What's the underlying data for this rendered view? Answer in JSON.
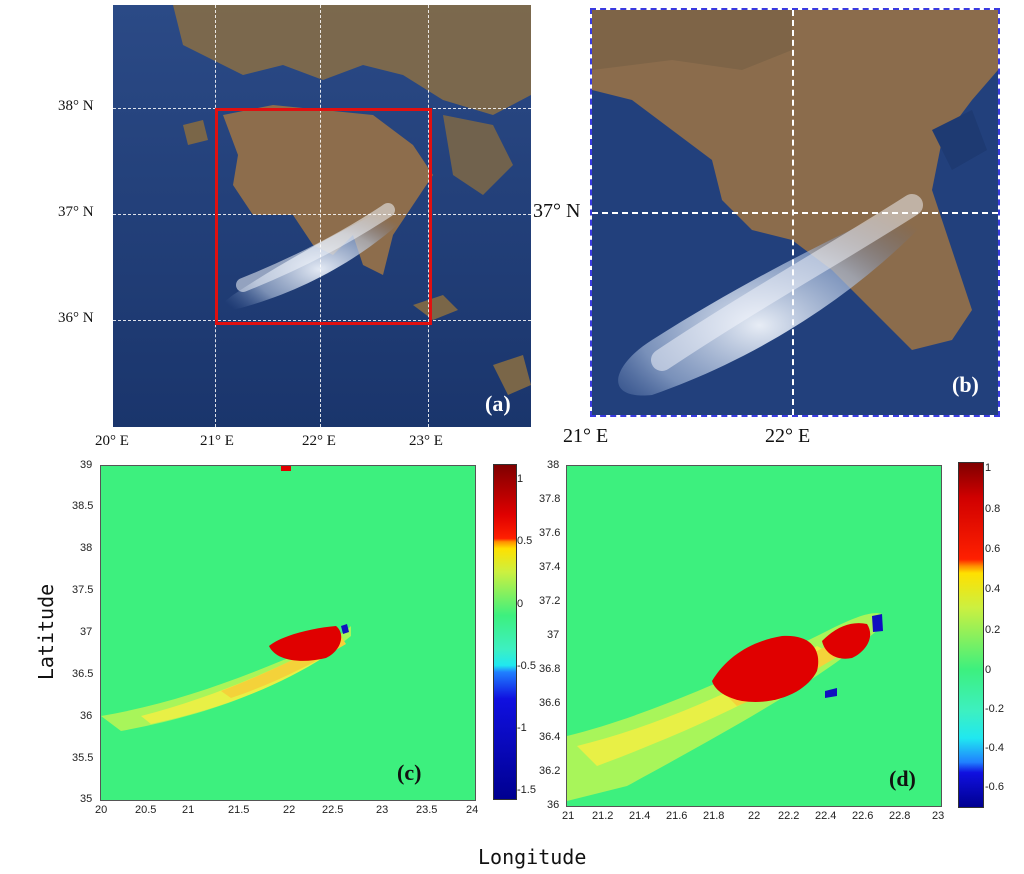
{
  "panel_a": {
    "tag": "(a)",
    "lat_labels": [
      "38° N",
      "37° N",
      "36° N"
    ],
    "lon_labels": [
      "20° E",
      "21° E",
      "22° E",
      "23° E"
    ]
  },
  "panel_b": {
    "tag": "(b)",
    "lat_labels": [
      "37° N"
    ],
    "lon_labels": [
      "21° E",
      "22° E"
    ]
  },
  "panel_c": {
    "tag": "(c)",
    "y_ticks": [
      "39",
      "38.5",
      "38",
      "37.5",
      "37",
      "36.5",
      "36",
      "35.5",
      "35"
    ],
    "x_ticks": [
      "20",
      "20.5",
      "21",
      "21.5",
      "22",
      "22.5",
      "23",
      "23.5",
      "24"
    ],
    "colorbar_ticks": [
      "1",
      "0.5",
      "0",
      "-0.5",
      "-1",
      "-1.5"
    ]
  },
  "panel_d": {
    "tag": "(d)",
    "y_ticks": [
      "38",
      "37.8",
      "37.6",
      "37.4",
      "37.2",
      "37",
      "36.8",
      "36.6",
      "36.4",
      "36.2",
      "36"
    ],
    "x_ticks": [
      "21",
      "21.2",
      "21.4",
      "21.6",
      "21.8",
      "22",
      "22.2",
      "22.4",
      "22.6",
      "22.8",
      "23"
    ],
    "colorbar_ticks": [
      "1",
      "0.8",
      "0.6",
      "0.4",
      "0.2",
      "0",
      "-0.2",
      "-0.4",
      "-0.6"
    ]
  },
  "axes": {
    "ylabel": "Latitude",
    "xlabel": "Longitude"
  },
  "colors": {
    "sea": "#1f3f7a",
    "land": "#8a6a4a",
    "smoke": "#dfe8f5",
    "box": "#e01010",
    "heat_bg": "#3cf07c",
    "heat_hot": "#e00000"
  }
}
